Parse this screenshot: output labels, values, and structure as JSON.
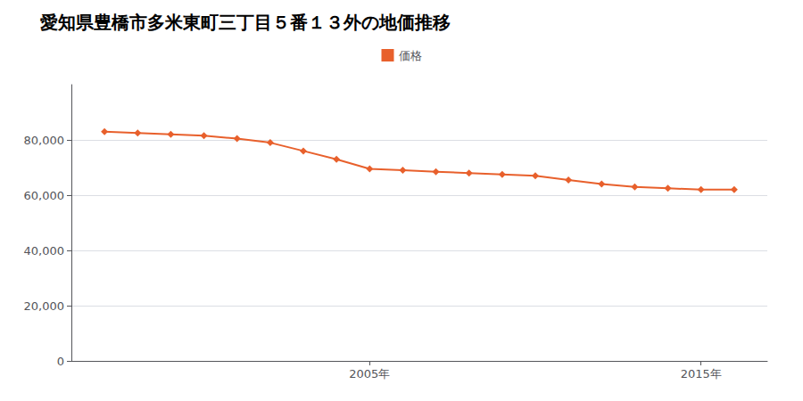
{
  "chart_data": {
    "type": "line",
    "title": "愛知県豊橋市多米東町三丁目５番１３外の地価推移",
    "x": [
      1997,
      1998,
      1999,
      2000,
      2001,
      2002,
      2003,
      2004,
      2005,
      2006,
      2007,
      2008,
      2009,
      2010,
      2011,
      2012,
      2013,
      2014,
      2015,
      2016
    ],
    "series": [
      {
        "name": "価格",
        "color": "#e8602c",
        "marker": "diamond",
        "values": [
          83000,
          82500,
          82000,
          81500,
          80500,
          79000,
          76000,
          73000,
          69500,
          69000,
          68500,
          68000,
          67500,
          67000,
          65500,
          64000,
          63000,
          62500,
          62000,
          62000
        ]
      }
    ],
    "xlim": [
      1996,
      2017
    ],
    "xticks": [
      {
        "value": 2005,
        "label": "2005年"
      },
      {
        "value": 2015,
        "label": "2015年"
      }
    ],
    "ylim": [
      0,
      100000
    ],
    "yticks": [
      0,
      {
        "value": 20000,
        "label": "20,000"
      },
      {
        "value": 40000,
        "label": "40,000"
      },
      {
        "value": 60000,
        "label": "60,000"
      },
      {
        "value": 80000,
        "label": "80,000"
      }
    ],
    "grid": true,
    "legend": "top"
  }
}
